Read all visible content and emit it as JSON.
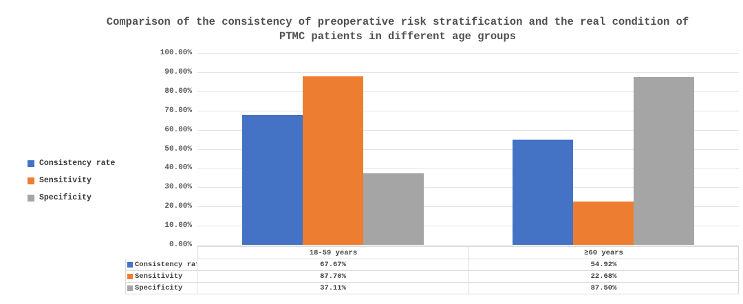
{
  "chart_data": {
    "type": "bar",
    "title": "Comparison of the consistency of preoperative risk stratification and the real condition of PTMC patients in different age groups",
    "title_lines": [
      "Comparison of the consistency of preoperative risk stratification and the real condition of",
      "PTMC patients in different age groups"
    ],
    "categories": [
      "18-59 years",
      "≥60 years"
    ],
    "series": [
      {
        "name": "Consistency rate",
        "color": "#4472C4",
        "values": [
          67.67,
          54.92
        ],
        "value_labels": [
          "67.67%",
          "54.92%"
        ]
      },
      {
        "name": "Sensitivity",
        "color": "#ED7D31",
        "values": [
          87.7,
          22.68
        ],
        "value_labels": [
          "87.70%",
          "22.68%"
        ]
      },
      {
        "name": "Specificity",
        "color": "#A5A5A5",
        "values": [
          37.11,
          87.5
        ],
        "value_labels": [
          "37.11%",
          "87.50%"
        ]
      }
    ],
    "xlabel": "",
    "ylabel": "",
    "ylim": [
      0,
      100
    ],
    "yticks": [
      "100.00%",
      "90.00%",
      "80.00%",
      "70.00%",
      "60.00%",
      "50.00%",
      "40.00%",
      "30.00%",
      "20.00%",
      "10.00%",
      "0.00%"
    ],
    "grid": true,
    "legend_position": "left",
    "data_table_shown": true
  },
  "colors": {
    "gridline": "#e3e3e3",
    "table_border": "#d9d9d9",
    "axis_text": "#595959",
    "title_text": "#4f4f4f"
  }
}
